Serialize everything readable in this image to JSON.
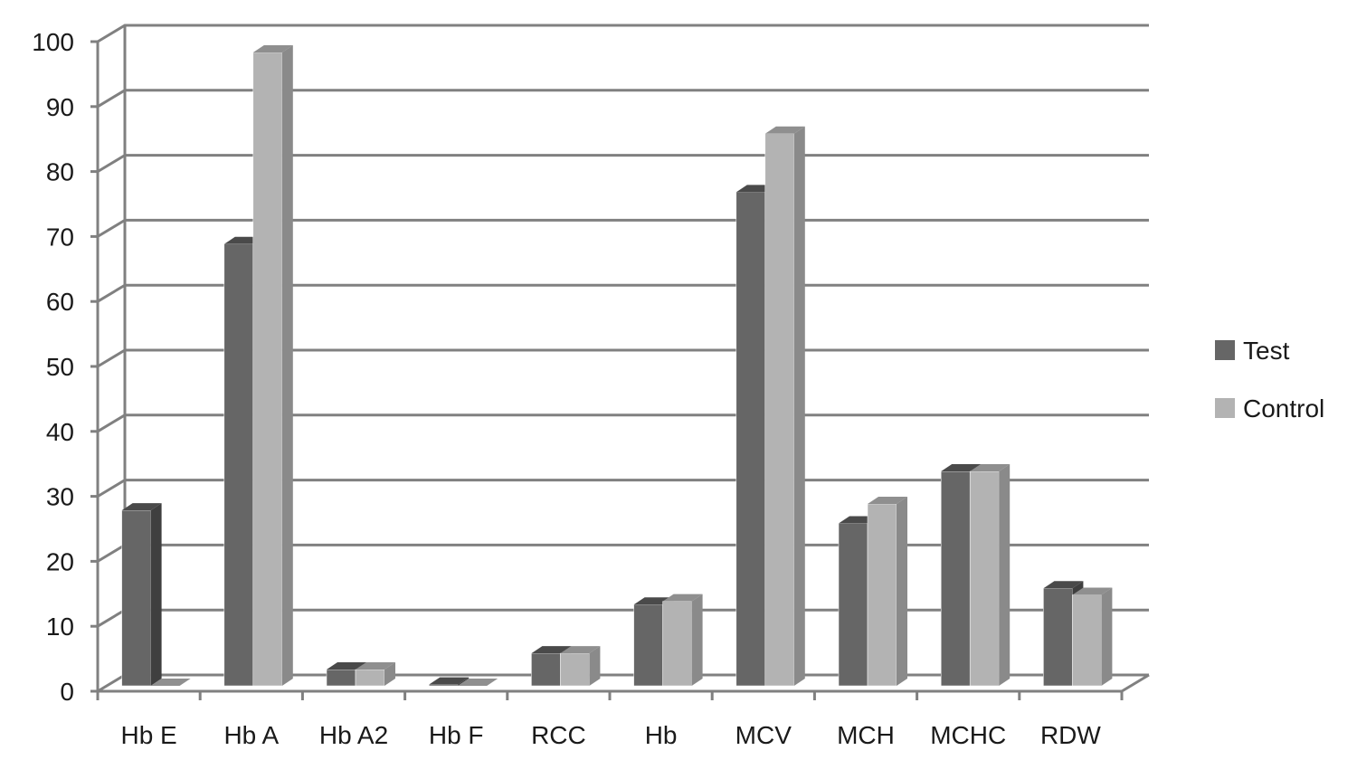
{
  "chart_data": {
    "type": "bar",
    "style": "3d-clustered-column",
    "categories": [
      "Hb E",
      "Hb A",
      "Hb A2",
      "Hb F",
      "RCC",
      "Hb",
      "MCV",
      "MCH",
      "MCHC",
      "RDW"
    ],
    "series": [
      {
        "name": "Test",
        "values": [
          27,
          68,
          2.5,
          0.2,
          5,
          12.5,
          76,
          25,
          33,
          15
        ],
        "color": "#666666",
        "side_color": "#3f3f3f",
        "top_color": "#4a4a4a"
      },
      {
        "name": "Control",
        "values": [
          0,
          97.5,
          2.5,
          0,
          5,
          13,
          85,
          28,
          33,
          14
        ],
        "color": "#b3b3b3",
        "side_color": "#8a8a8a",
        "top_color": "#8f8f8f"
      }
    ],
    "ylim": [
      0,
      100
    ],
    "yticks": [
      0,
      10,
      20,
      30,
      40,
      50,
      60,
      70,
      80,
      90,
      100
    ],
    "grid": true,
    "legend_position": "right",
    "grid_color": "#808080"
  }
}
